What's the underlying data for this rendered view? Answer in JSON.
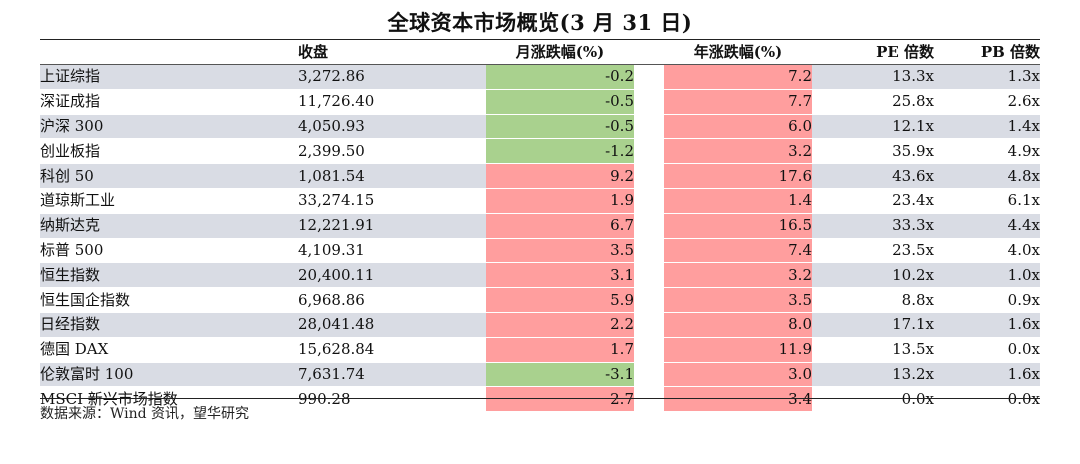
{
  "title": "全球资本市场概览(3 月 31 日)",
  "columns": {
    "name": "",
    "close": "收盘",
    "monthly_change": "月涨跌幅(%)",
    "yearly_change": "年涨跌幅(%)",
    "pe": "PE 倍数",
    "pb": "PB 倍数"
  },
  "colors": {
    "positive": "#ff9e9e",
    "negative": "#a9d18e",
    "row_shade": "#d9dce4"
  },
  "rows": [
    {
      "name": "上证综指",
      "close": "3,272.86",
      "monthly_change": "-0.2",
      "yearly_change": "7.2",
      "pe": "13.3x",
      "pb": "1.3x"
    },
    {
      "name": "深证成指",
      "close": "11,726.40",
      "monthly_change": "-0.5",
      "yearly_change": "7.7",
      "pe": "25.8x",
      "pb": "2.6x"
    },
    {
      "name": "沪深 300",
      "close": "4,050.93",
      "monthly_change": "-0.5",
      "yearly_change": "6.0",
      "pe": "12.1x",
      "pb": "1.4x"
    },
    {
      "name": "创业板指",
      "close": "2,399.50",
      "monthly_change": "-1.2",
      "yearly_change": "3.2",
      "pe": "35.9x",
      "pb": "4.9x"
    },
    {
      "name": "科创 50",
      "close": "1,081.54",
      "monthly_change": "9.2",
      "yearly_change": "17.6",
      "pe": "43.6x",
      "pb": "4.8x"
    },
    {
      "name": "道琼斯工业",
      "close": "33,274.15",
      "monthly_change": "1.9",
      "yearly_change": "1.4",
      "pe": "23.4x",
      "pb": "6.1x"
    },
    {
      "name": "纳斯达克",
      "close": "12,221.91",
      "monthly_change": "6.7",
      "yearly_change": "16.5",
      "pe": "33.3x",
      "pb": "4.4x"
    },
    {
      "name": "标普 500",
      "close": "4,109.31",
      "monthly_change": "3.5",
      "yearly_change": "7.4",
      "pe": "23.5x",
      "pb": "4.0x"
    },
    {
      "name": "恒生指数",
      "close": "20,400.11",
      "monthly_change": "3.1",
      "yearly_change": "3.2",
      "pe": "10.2x",
      "pb": "1.0x"
    },
    {
      "name": "恒生国企指数",
      "close": "6,968.86",
      "monthly_change": "5.9",
      "yearly_change": "3.5",
      "pe": "8.8x",
      "pb": "0.9x"
    },
    {
      "name": "日经指数",
      "close": "28,041.48",
      "monthly_change": "2.2",
      "yearly_change": "8.0",
      "pe": "17.1x",
      "pb": "1.6x"
    },
    {
      "name": "德国 DAX",
      "close": "15,628.84",
      "monthly_change": "1.7",
      "yearly_change": "11.9",
      "pe": "13.5x",
      "pb": "0.0x"
    },
    {
      "name": "伦敦富时 100",
      "close": "7,631.74",
      "monthly_change": "-3.1",
      "yearly_change": "3.0",
      "pe": "13.2x",
      "pb": "1.6x"
    },
    {
      "name": "MSCI 新兴市场指数",
      "close": "990.28",
      "monthly_change": "2.7",
      "yearly_change": "3.4",
      "pe": "0.0x",
      "pb": "0.0x"
    }
  ],
  "source": "数据来源：Wind 资讯，望华研究"
}
